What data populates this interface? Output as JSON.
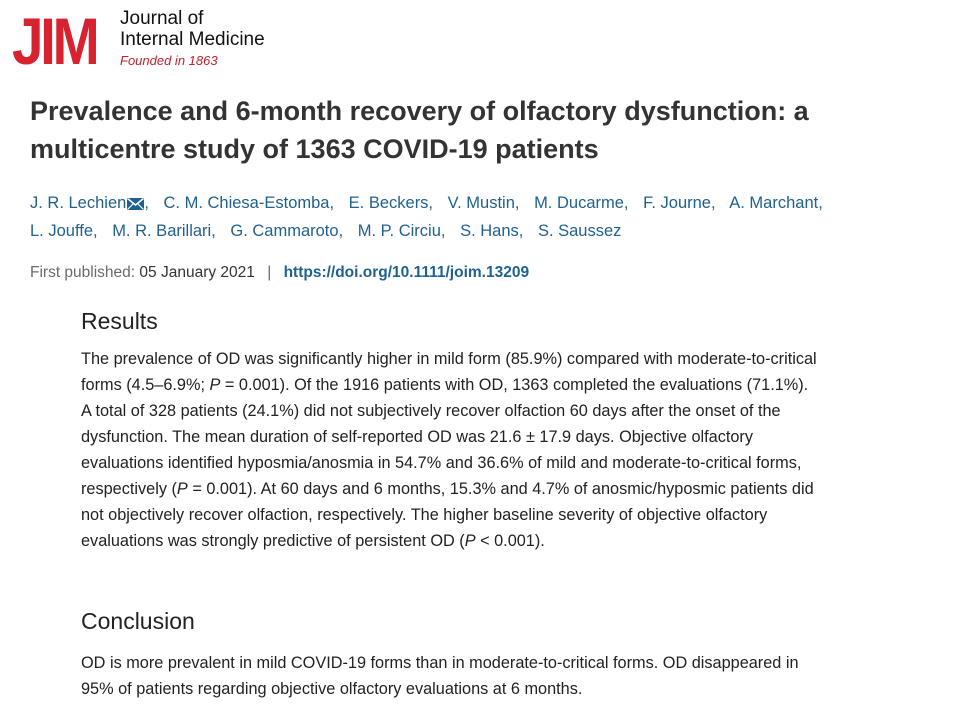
{
  "journal": {
    "logo_mark": "JIM",
    "name_line1": "Journal of",
    "name_line2": "Internal Medicine",
    "founded": "Founded in 1863"
  },
  "article": {
    "title": "Prevalence and 6-month recovery of olfactory dysfunction: a multicentre study of 1363 COVID-19 patients",
    "authors": [
      "J. R. Lechien",
      "C. M. Chiesa-Estomba,",
      "E. Beckers,",
      "V. Mustin,",
      "M. Ducarme,",
      "F. Journe,",
      "A. Marchant,",
      "L. Jouffe,",
      "M. R. Barillari,",
      "G. Cammaroto,",
      "M. P. Circiu,",
      "S. Hans,",
      "S. Saussez"
    ],
    "first_published_label": "First published:",
    "first_published_date": "05 January 2021",
    "separator": "|",
    "doi": "https://doi.org/10.1111/joim.13209"
  },
  "results": {
    "heading": "Results",
    "p1": "The prevalence of OD was significantly higher in mild form (85.9%) compared with moderate-to-critical forms (4.5–6.9%; ",
    "p1_italic": "P",
    "p2": " = 0.001). Of the 1916 patients with OD, 1363 completed the evaluations (71.1%). A total of 328 patients (24.1%) did not subjectively recover olfaction 60 days after the onset of the dysfunction. The mean duration of self-reported OD was 21.6 ± 17.9 days. Objective olfactory evaluations identified hyposmia/anosmia in 54.7% and 36.6% of mild and moderate-to-critical forms, respectively (",
    "p2_italic": "P",
    "p3": " = 0.001). At 60 days and 6 months, 15.3% and 4.7% of anosmic/hyposmic patients did not objectively recover olfaction, respectively. The higher baseline severity of objective olfactory evaluations was strongly predictive of persistent OD (",
    "p3_italic": "P",
    "p4": " < 0.001)."
  },
  "conclusion": {
    "heading": "Conclusion",
    "text": "OD is more prevalent in mild COVID-19 forms than in moderate-to-critical forms. OD disappeared in 95% of patients regarding objective olfactory evaluations at 6 months."
  },
  "icons": {
    "mail": "envelope-icon"
  },
  "colors": {
    "brand_red": "#d7232f",
    "link_blue": "#1f6190"
  }
}
